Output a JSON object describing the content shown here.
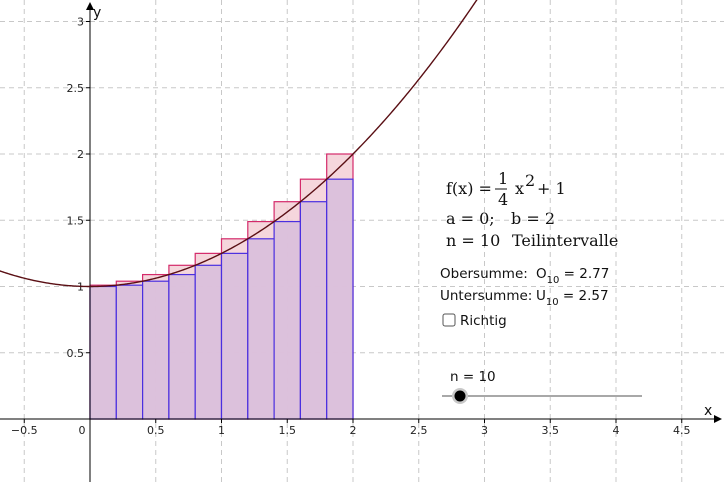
{
  "colors": {
    "background": "#ffffff",
    "grid": "#c8c8c8",
    "axes": "#000000",
    "curve": "#5a0f14",
    "upper_fill": "#f3cfd6",
    "upper_stroke": "#d42a6a",
    "lower_fill": "#d9bfdc",
    "lower_stroke": "#4a2fe0",
    "slider_track": "#a8a8a8",
    "slider_knob": "#000000"
  },
  "axes": {
    "x_label": "x",
    "y_label": "y",
    "x_ticks": [
      "−0.5",
      "0",
      "0.5",
      "1",
      "1.5",
      "2",
      "2.5",
      "3",
      "3.5",
      "4",
      "4.5"
    ],
    "y_ticks": [
      "0.5",
      "1",
      "1.5",
      "2",
      "2.5",
      "3"
    ]
  },
  "chart_data": {
    "type": "area",
    "function": "f(x) = 1/4 x^2 + 1",
    "xlim": [
      -0.68,
      4.85
    ],
    "ylim": [
      -0.47,
      3.15
    ],
    "x_tick_values": [
      -0.5,
      0,
      0.5,
      1,
      1.5,
      2,
      2.5,
      3,
      3.5,
      4,
      4.5
    ],
    "y_tick_values": [
      0.5,
      1,
      1.5,
      2,
      2.5,
      3
    ],
    "grid": true,
    "interval": [
      0,
      2
    ],
    "n": 10,
    "partition_x": [
      0,
      0.2,
      0.4,
      0.6,
      0.8,
      1.0,
      1.2,
      1.4,
      1.6,
      1.8,
      2.0
    ],
    "upper_heights": [
      1.01,
      1.04,
      1.09,
      1.16,
      1.25,
      1.36,
      1.49,
      1.64,
      1.81,
      2.0
    ],
    "lower_heights": [
      1.0,
      1.01,
      1.04,
      1.09,
      1.16,
      1.25,
      1.36,
      1.49,
      1.64,
      1.81
    ],
    "upper_sum": 2.77,
    "lower_sum": 2.57
  },
  "info": {
    "f_prefix": "f(x) =",
    "f_num": "1",
    "f_den": "4",
    "f_x": "x",
    "f_exp": "2",
    "f_suffix": "+ 1",
    "a_text": "a = 0;",
    "b_text": "b = 2",
    "n_text": "n = 10",
    "teil_text": "Teilintervalle",
    "obersumme_label": "Obersumme:",
    "obersumme_sym": "O",
    "obersumme_sub": "10",
    "obersumme_val": " = 2.77",
    "untersumme_label": "Untersumme:",
    "untersumme_sym": "U",
    "untersumme_sub": "10",
    "untersumme_val": " = 2.57",
    "checkbox_label": "Richtig",
    "checkbox_checked": false
  },
  "slider": {
    "label": "n = 10",
    "value": 10,
    "min": 1,
    "max": 50
  }
}
